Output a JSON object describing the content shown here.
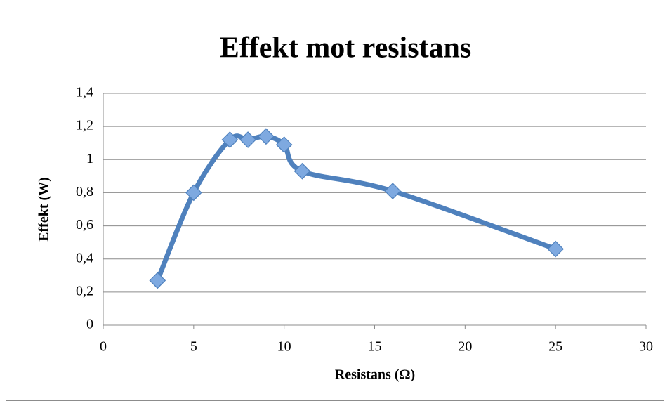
{
  "chart_data": {
    "type": "line",
    "title": "Effekt mot resistans",
    "x_label": "Resistans (Ω)",
    "y_label": "Effekt (W)",
    "x": [
      3,
      5,
      7,
      8,
      9,
      10,
      11,
      16,
      25
    ],
    "values": [
      0.27,
      0.8,
      1.12,
      1.12,
      1.14,
      1.09,
      0.93,
      0.81,
      0.46
    ],
    "color": "#4f81bd",
    "marker_color": "#7ea9e0",
    "smooth": true,
    "grid": true,
    "xlim": [
      0,
      30
    ],
    "xticks": [
      0,
      5,
      10,
      15,
      20,
      25,
      30
    ],
    "ylim": [
      0,
      1.4
    ],
    "yticks": [
      0,
      {
        "value": 0.2,
        "label": "0,2"
      },
      {
        "value": 0.4,
        "label": "0,4"
      },
      {
        "value": 0.6,
        "label": "0,6"
      },
      {
        "value": 0.8,
        "label": "0,8"
      },
      1,
      {
        "value": 1.2,
        "label": "1,2"
      },
      {
        "value": 1.4,
        "label": "1,4"
      }
    ]
  }
}
